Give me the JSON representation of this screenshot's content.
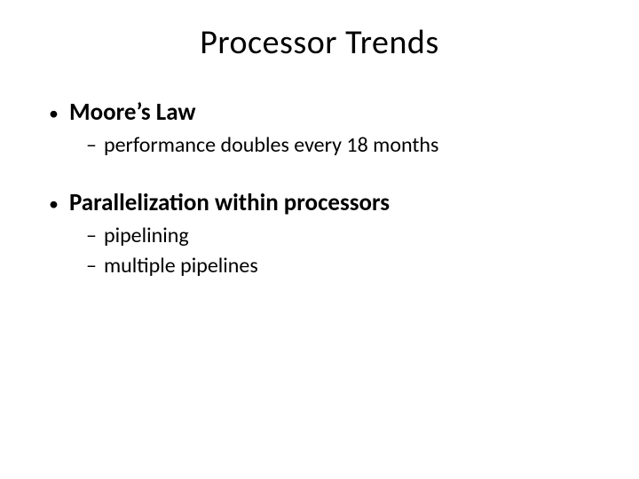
{
  "slide": {
    "title": "Processor Trends",
    "background_color": "#ffffff",
    "text_color": "#000000",
    "title_fontsize": 38,
    "bullet_fontsize": 27,
    "sub_fontsize": 24,
    "font_family": "Calibri",
    "groups": [
      {
        "bullet": "Moore’s Law",
        "subs": [
          "performance doubles every 18 months"
        ]
      },
      {
        "bullet": "Parallelization within processors",
        "subs": [
          "pipelining",
          "multiple pipelines"
        ]
      }
    ]
  }
}
